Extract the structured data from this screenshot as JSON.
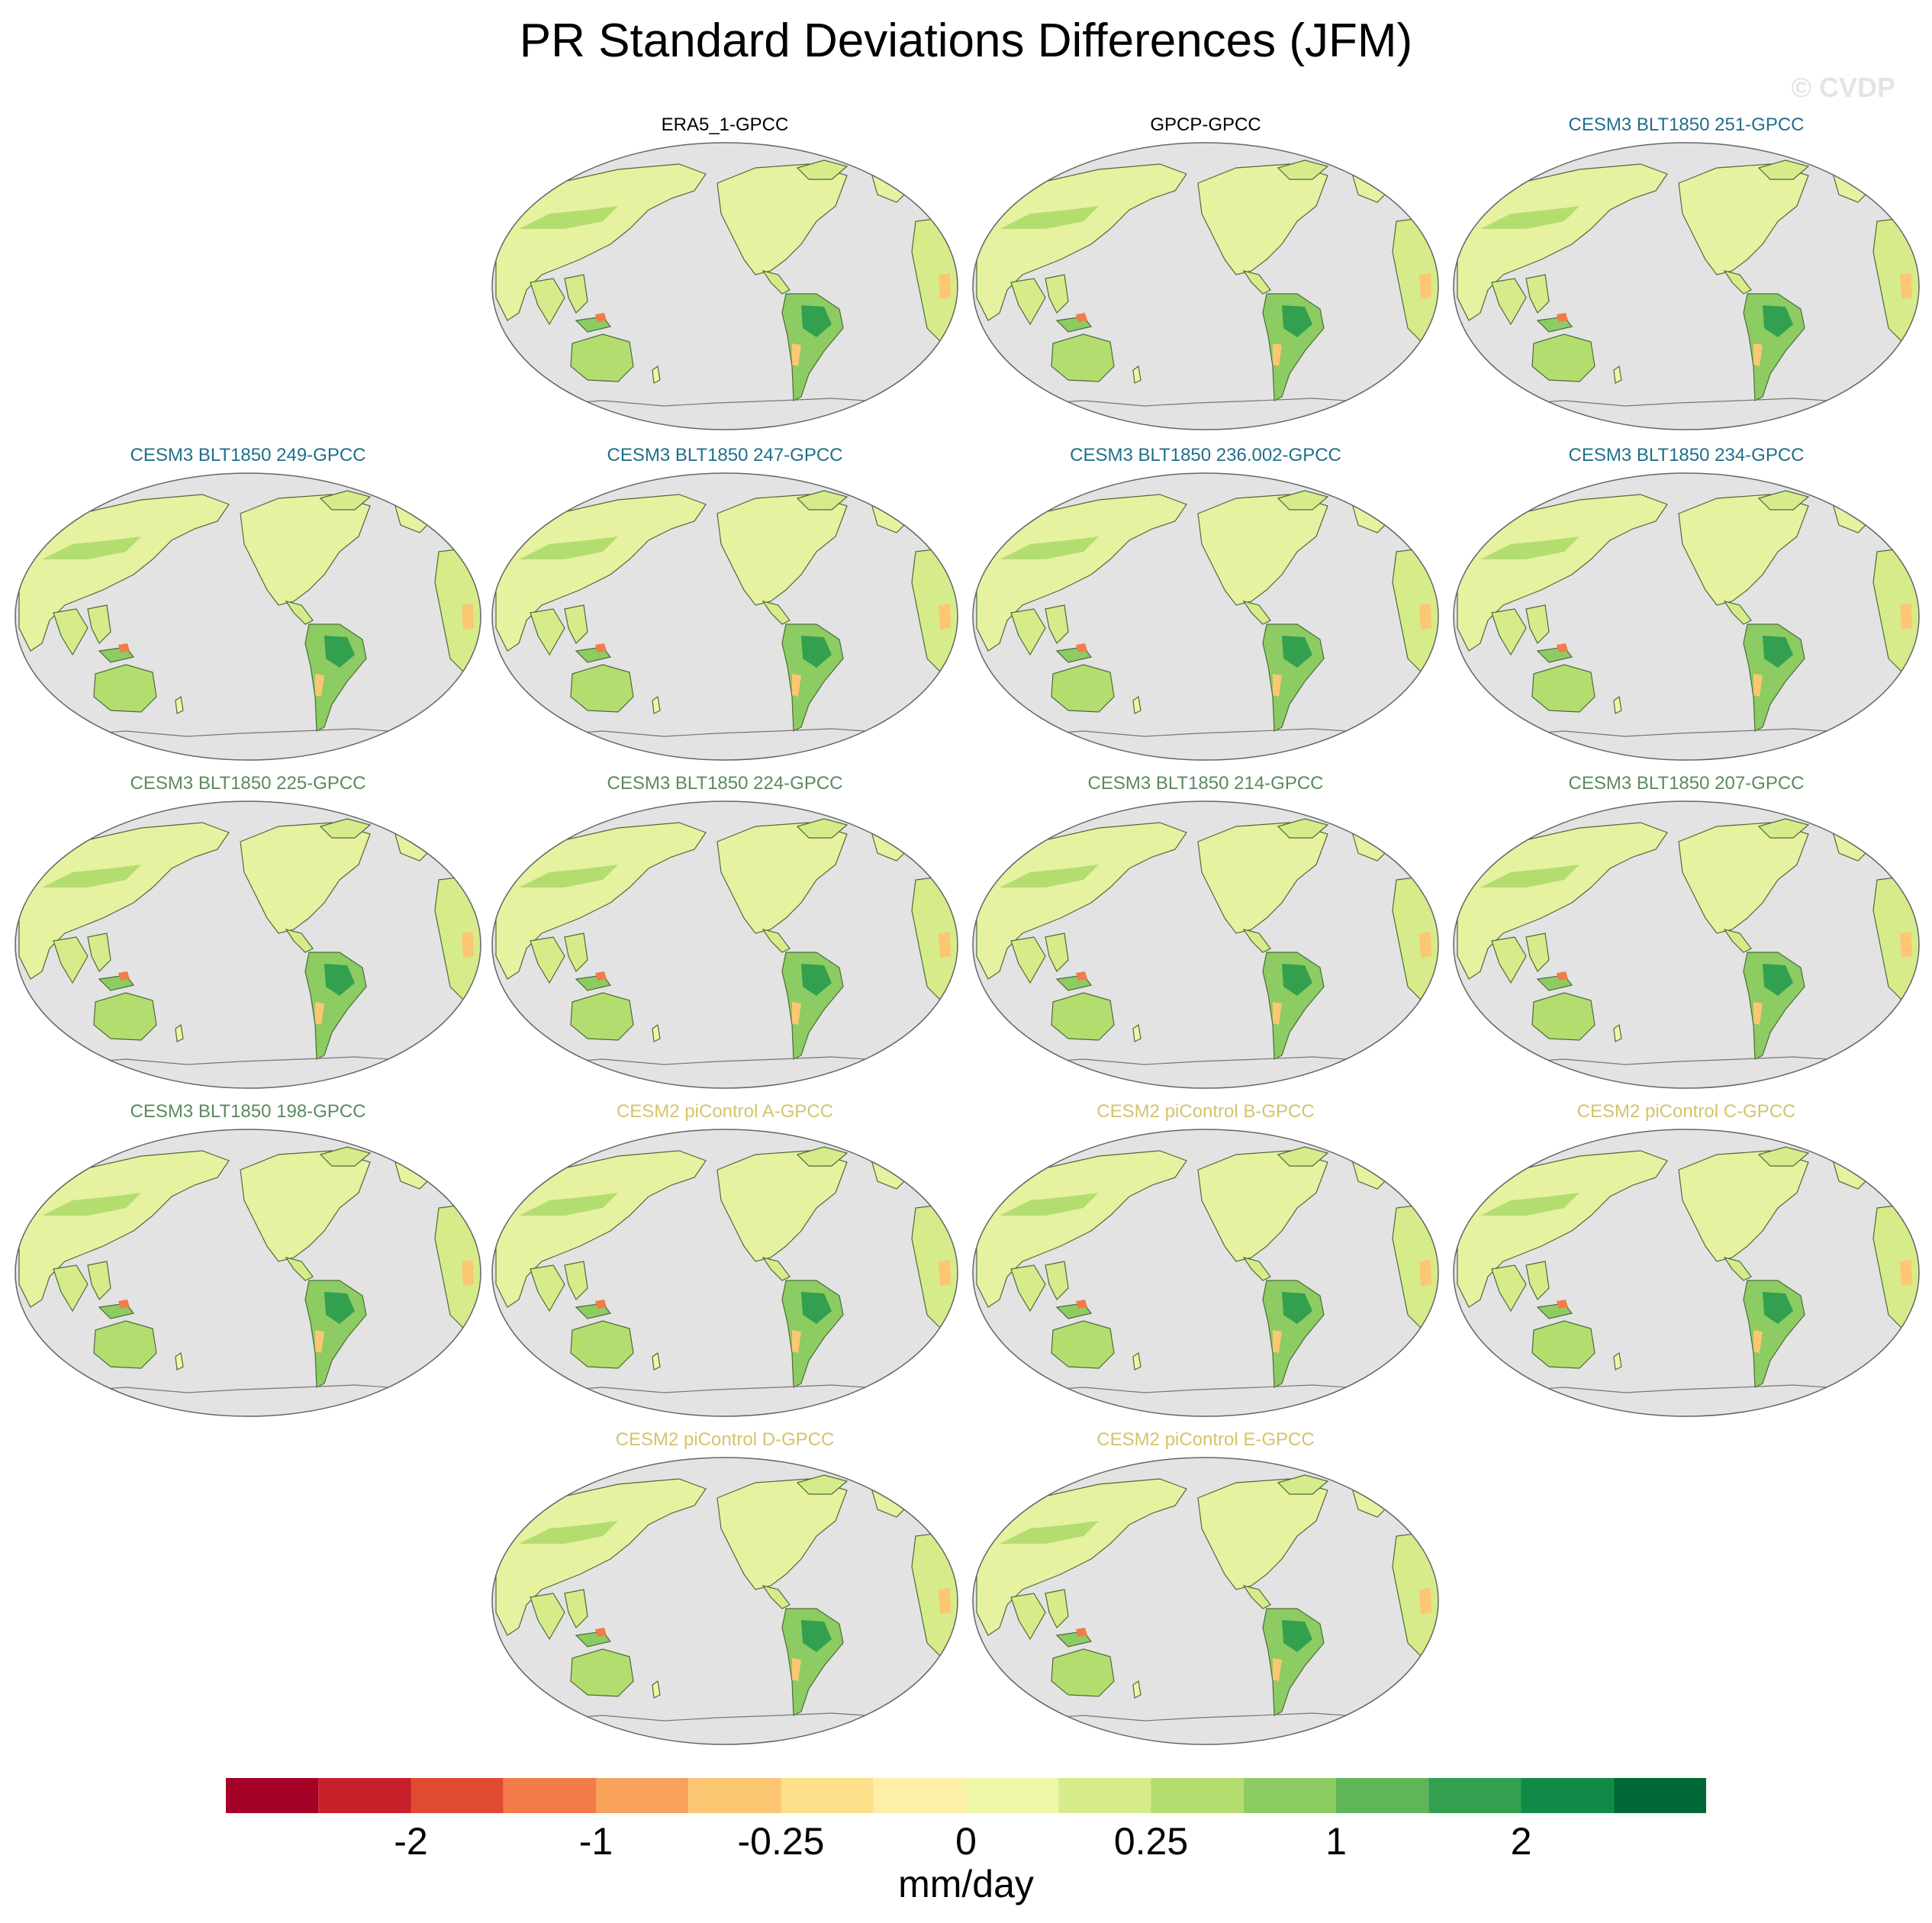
{
  "header": {
    "title": "PR Standard Deviations Differences (JFM)",
    "watermark": "© CVDP"
  },
  "panels": [
    {
      "label": "ERA5_1-GPCC",
      "color": "#000000"
    },
    {
      "label": "GPCP-GPCC",
      "color": "#000000"
    },
    {
      "label": "CESM3 BLT1850 251-GPCC",
      "color": "#1f6f8b"
    },
    {
      "label": "CESM3 BLT1850 249-GPCC",
      "color": "#1f6f8b"
    },
    {
      "label": "CESM3 BLT1850 247-GPCC",
      "color": "#1f6f8b"
    },
    {
      "label": "CESM3 BLT1850 236.002-GPCC",
      "color": "#1f6f8b"
    },
    {
      "label": "CESM3 BLT1850 234-GPCC",
      "color": "#1f6f8b"
    },
    {
      "label": "CESM3 BLT1850 225-GPCC",
      "color": "#5a8a5e"
    },
    {
      "label": "CESM3 BLT1850 224-GPCC",
      "color": "#5a8a5e"
    },
    {
      "label": "CESM3 BLT1850 214-GPCC",
      "color": "#5a8a5e"
    },
    {
      "label": "CESM3 BLT1850 207-GPCC",
      "color": "#5a8a5e"
    },
    {
      "label": "CESM3 BLT1850 198-GPCC",
      "color": "#5a8a5e"
    },
    {
      "label": "CESM2 piControl A-GPCC",
      "color": "#d4c46a"
    },
    {
      "label": "CESM2 piControl B-GPCC",
      "color": "#d4c46a"
    },
    {
      "label": "CESM2 piControl C-GPCC",
      "color": "#d4c46a"
    },
    {
      "label": "CESM2 piControl D-GPCC",
      "color": "#d4c46a"
    },
    {
      "label": "CESM2 piControl E-GPCC",
      "color": "#d4c46a"
    }
  ],
  "colorbar": {
    "colors": [
      "#a50026",
      "#c8202a",
      "#e04a33",
      "#f37b4a",
      "#f9a25c",
      "#fdc673",
      "#fce08a",
      "#fdf0a6",
      "#eff6a6",
      "#d6ec8a",
      "#b4dd70",
      "#8ccc62",
      "#5fb658",
      "#33a04f",
      "#128a47",
      "#006837"
    ],
    "tick_labels": [
      "-2",
      "-1",
      "-0.25",
      "0",
      "0.25",
      "1",
      "2"
    ],
    "unit": "mm/day"
  },
  "chart_data": {
    "type": "heatmap",
    "title": "PR Standard Deviations Differences (JFM)",
    "colorbar_levels": [
      -2,
      -1,
      -0.25,
      0,
      0.25,
      1,
      2
    ],
    "colorbar_unit": "mm/day",
    "panel_titles": [
      "ERA5_1-GPCC",
      "GPCP-GPCC",
      "CESM3 BLT1850 251-GPCC",
      "CESM3 BLT1850 249-GPCC",
      "CESM3 BLT1850 247-GPCC",
      "CESM3 BLT1850 236.002-GPCC",
      "CESM3 BLT1850 234-GPCC",
      "CESM3 BLT1850 225-GPCC",
      "CESM3 BLT1850 224-GPCC",
      "CESM3 BLT1850 214-GPCC",
      "CESM3 BLT1850 207-GPCC",
      "CESM3 BLT1850 198-GPCC",
      "CESM2 piControl A-GPCC",
      "CESM2 piControl B-GPCC",
      "CESM2 piControl C-GPCC",
      "CESM2 piControl D-GPCC",
      "CESM2 piControl E-GPCC"
    ]
  }
}
